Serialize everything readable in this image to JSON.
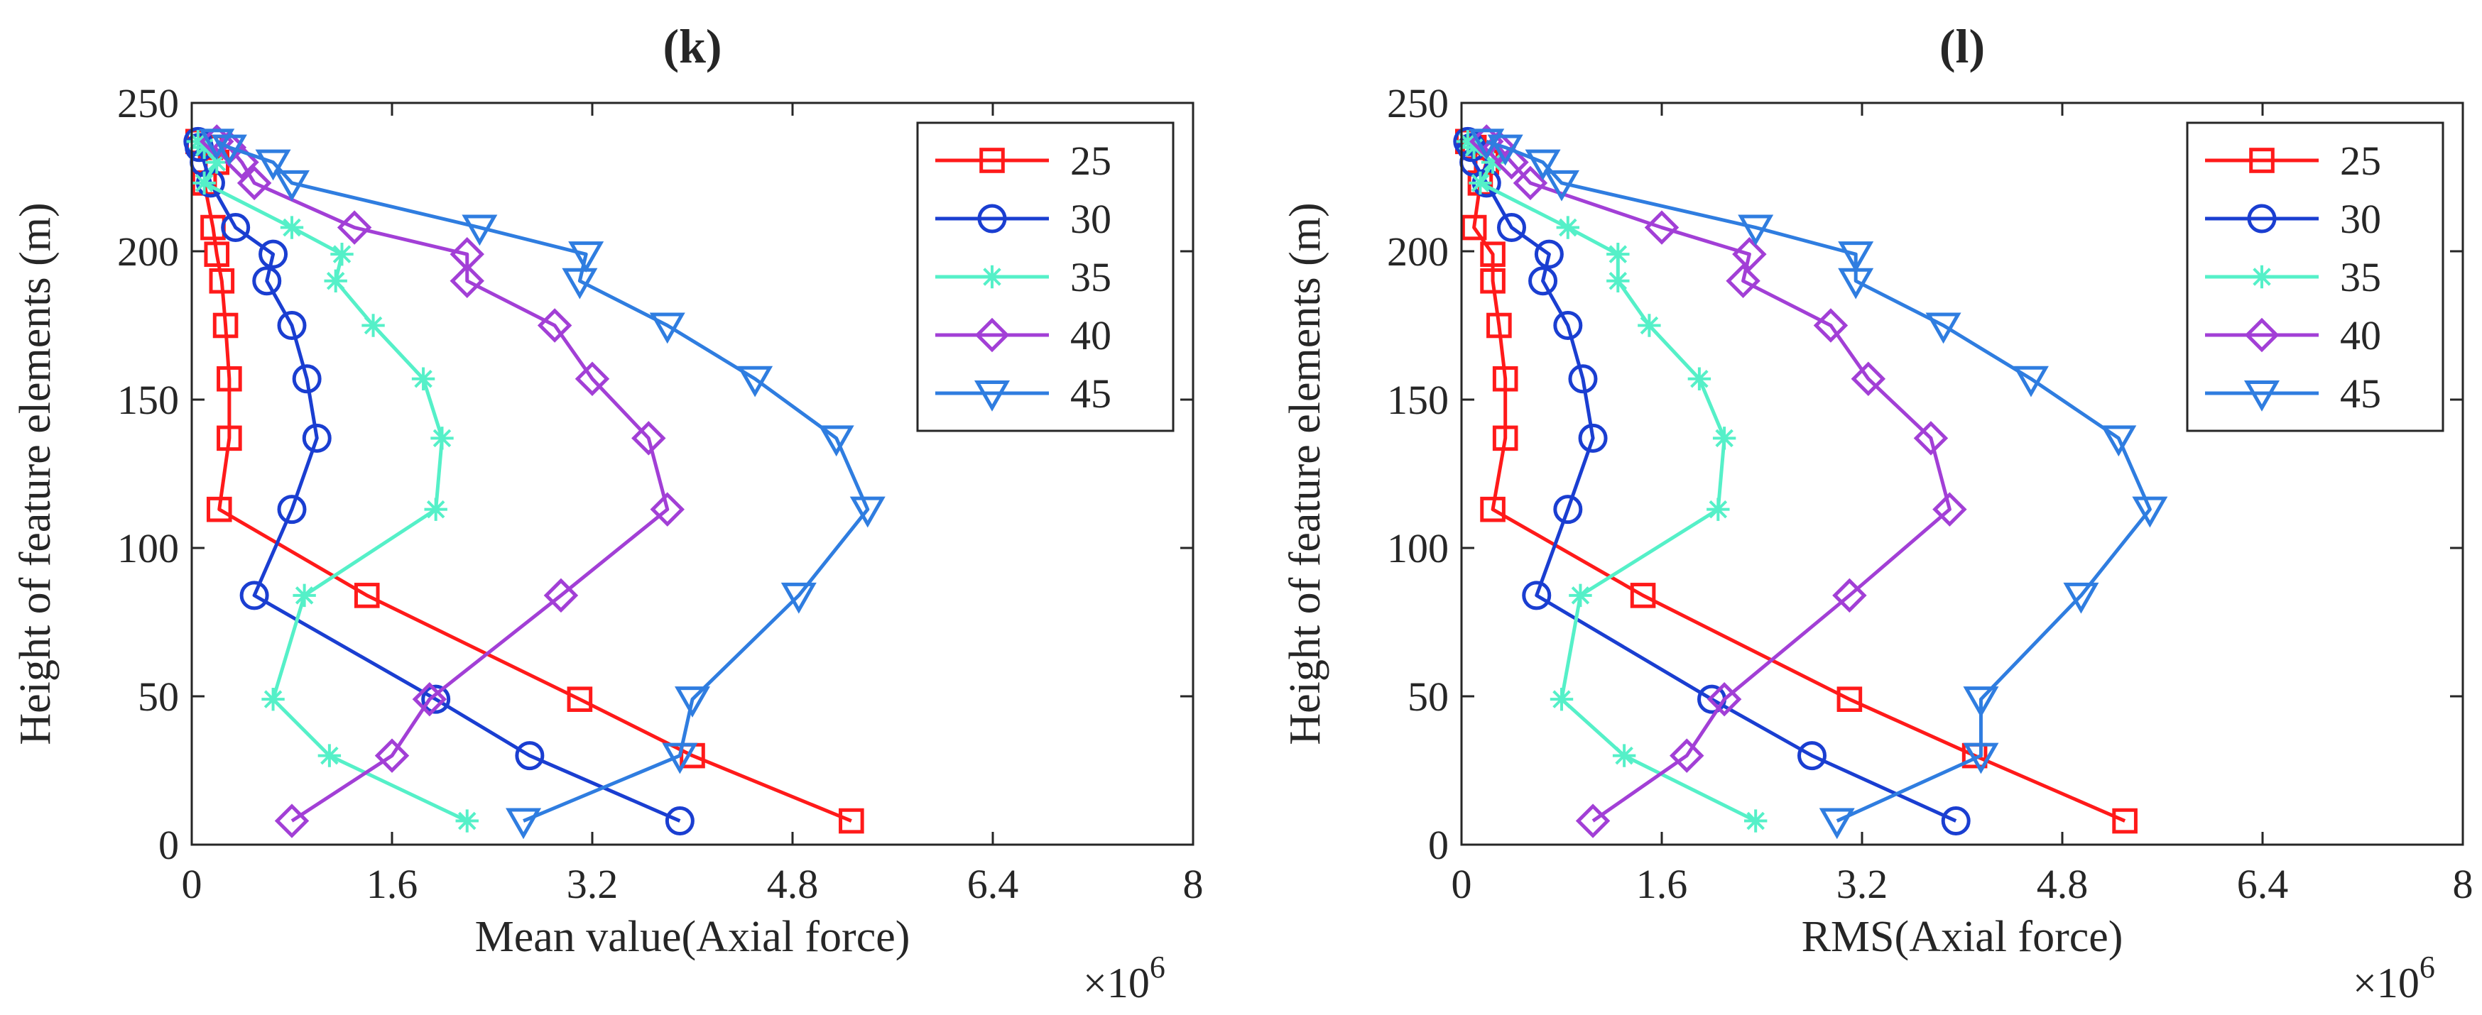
{
  "chart_data": [
    {
      "type": "line",
      "panel_label": "(k)",
      "title": "(k)",
      "xlabel": "Mean value(Axial force)",
      "ylabel": "Height of feature elements (m)",
      "x_exponent": "×10",
      "x_exponent_power": "6",
      "xlim": [
        0,
        8
      ],
      "ylim": [
        0,
        250
      ],
      "xticks": [
        "0",
        "1.6",
        "3.2",
        "4.8",
        "6.4",
        "8"
      ],
      "yticks": [
        "0",
        "50",
        "100",
        "150",
        "200",
        "250"
      ],
      "legend_position": "top-right",
      "series": [
        {
          "name": "25",
          "color": "#ff1a1a",
          "marker": "square",
          "x": [
            5.27,
            4.0,
            3.1,
            1.4,
            0.22,
            0.3,
            0.3,
            0.27,
            0.24,
            0.2,
            0.17,
            0.1,
            0.2,
            0.15,
            0.05
          ],
          "y": [
            8,
            30,
            49,
            84,
            113,
            137,
            157,
            175,
            190,
            199,
            208,
            223,
            230,
            235,
            237
          ]
        },
        {
          "name": "30",
          "color": "#1a3ed1",
          "marker": "circle",
          "x": [
            3.9,
            2.7,
            1.95,
            0.5,
            0.8,
            1.0,
            0.92,
            0.8,
            0.6,
            0.65,
            0.35,
            0.15,
            0.1,
            0.06,
            0.05
          ],
          "y": [
            8,
            30,
            49,
            84,
            113,
            137,
            157,
            175,
            190,
            199,
            208,
            223,
            230,
            235,
            237
          ]
        },
        {
          "name": "35",
          "color": "#55f0c8",
          "marker": "asterisk",
          "x": [
            2.2,
            1.1,
            0.65,
            0.9,
            1.95,
            2.0,
            1.85,
            1.45,
            1.15,
            1.2,
            0.8,
            0.1,
            0.2,
            0.1,
            0.05
          ],
          "y": [
            8,
            30,
            49,
            84,
            113,
            137,
            157,
            175,
            190,
            199,
            208,
            223,
            230,
            235,
            237
          ]
        },
        {
          "name": "40",
          "color": "#a23fd6",
          "marker": "diamond",
          "x": [
            0.8,
            1.6,
            1.9,
            2.95,
            3.8,
            3.65,
            3.2,
            2.9,
            2.2,
            2.2,
            1.3,
            0.5,
            0.4,
            0.3,
            0.2
          ],
          "y": [
            8,
            30,
            49,
            84,
            113,
            137,
            157,
            175,
            190,
            199,
            208,
            223,
            230,
            235,
            237
          ]
        },
        {
          "name": "45",
          "color": "#2f7de0",
          "marker": "triangle-down",
          "x": [
            2.65,
            3.9,
            4.0,
            4.85,
            5.4,
            5.15,
            4.5,
            3.8,
            3.1,
            3.15,
            2.3,
            0.8,
            0.65,
            0.3,
            0.2
          ],
          "y": [
            8,
            30,
            49,
            84,
            113,
            137,
            157,
            175,
            190,
            199,
            208,
            223,
            230,
            235,
            237
          ]
        }
      ]
    },
    {
      "type": "line",
      "panel_label": "(l)",
      "title": "(l)",
      "xlabel": "RMS(Axial force)",
      "ylabel": "Height of feature elements (m)",
      "x_exponent": "×10",
      "x_exponent_power": "6",
      "xlim": [
        0,
        8
      ],
      "ylim": [
        0,
        250
      ],
      "xticks": [
        "0",
        "1.6",
        "3.2",
        "4.8",
        "6.4",
        "8"
      ],
      "yticks": [
        "0",
        "50",
        "100",
        "150",
        "200",
        "250"
      ],
      "legend_position": "top-right",
      "series": [
        {
          "name": "25",
          "color": "#ff1a1a",
          "marker": "square",
          "x": [
            5.3,
            4.1,
            3.1,
            1.45,
            0.25,
            0.35,
            0.35,
            0.3,
            0.25,
            0.25,
            0.1,
            0.15,
            0.2,
            0.1,
            0.05
          ],
          "y": [
            8,
            30,
            49,
            84,
            113,
            137,
            157,
            175,
            190,
            199,
            208,
            223,
            230,
            235,
            237
          ]
        },
        {
          "name": "30",
          "color": "#1a3ed1",
          "marker": "circle",
          "x": [
            3.95,
            2.8,
            2.0,
            0.6,
            0.85,
            1.05,
            0.97,
            0.85,
            0.65,
            0.7,
            0.4,
            0.2,
            0.1,
            0.08,
            0.05
          ],
          "y": [
            8,
            30,
            49,
            84,
            113,
            137,
            157,
            175,
            190,
            199,
            208,
            223,
            230,
            235,
            237
          ]
        },
        {
          "name": "35",
          "color": "#55f0c8",
          "marker": "asterisk",
          "x": [
            2.35,
            1.3,
            0.8,
            0.95,
            2.05,
            2.1,
            1.9,
            1.5,
            1.25,
            1.25,
            0.85,
            0.15,
            0.25,
            0.1,
            0.05
          ],
          "y": [
            8,
            30,
            49,
            84,
            113,
            137,
            157,
            175,
            190,
            199,
            208,
            223,
            230,
            235,
            237
          ]
        },
        {
          "name": "40",
          "color": "#a23fd6",
          "marker": "diamond",
          "x": [
            1.05,
            1.8,
            2.1,
            3.1,
            3.9,
            3.75,
            3.25,
            2.95,
            2.25,
            2.3,
            1.6,
            0.55,
            0.4,
            0.3,
            0.2
          ],
          "y": [
            8,
            30,
            49,
            84,
            113,
            137,
            157,
            175,
            190,
            199,
            208,
            223,
            230,
            235,
            237
          ]
        },
        {
          "name": "45",
          "color": "#2f7de0",
          "marker": "triangle-down",
          "x": [
            3.0,
            4.15,
            4.15,
            4.95,
            5.5,
            5.25,
            4.55,
            3.85,
            3.15,
            3.15,
            2.35,
            0.8,
            0.65,
            0.35,
            0.2
          ],
          "y": [
            8,
            30,
            49,
            84,
            113,
            137,
            157,
            175,
            190,
            199,
            208,
            223,
            230,
            235,
            237
          ]
        }
      ]
    }
  ]
}
